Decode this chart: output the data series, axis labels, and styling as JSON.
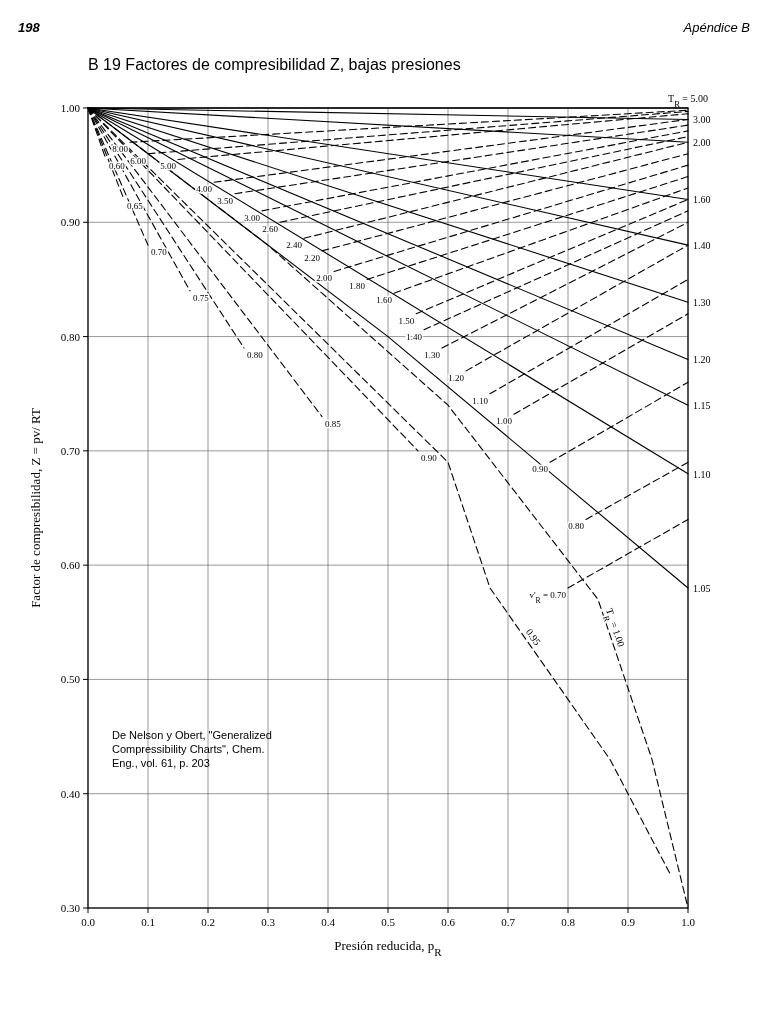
{
  "chart_data": {
    "type": "line",
    "title": "B 19 Factores de compresibilidad Z, bajas presiones",
    "xlabel": "Presión reducida, p$_{R}$",
    "ylabel": "Factor de compresibilidad, Z = pv/ RT",
    "annotations": [
      "198",
      "Apéndice B",
      "De Nelson y Obert, \"Generalized Compressibility Charts\", Chem. Eng., vol. 61, p. 203"
    ],
    "xlim": [
      0,
      1
    ],
    "ylim": [
      0.3,
      1.0
    ],
    "xticks": [
      {
        "value": 0,
        "label": "0.0"
      },
      0.1,
      0.2,
      0.3,
      0.4,
      0.5,
      0.6,
      0.7,
      0.8,
      0.9,
      {
        "value": 1,
        "label": "1.0"
      }
    ],
    "yticks": [
      {
        "value": 0.3,
        "label": "0.30"
      },
      {
        "value": 0.4,
        "label": "0.40"
      },
      {
        "value": 0.5,
        "label": "0.50"
      },
      {
        "value": 0.6,
        "label": "0.60"
      },
      {
        "value": 0.7,
        "label": "0.70"
      },
      {
        "value": 0.8,
        "label": "0.80"
      },
      {
        "value": 0.9,
        "label": "0.90"
      },
      {
        "value": 1.0,
        "label": "1.00"
      }
    ],
    "grid": true,
    "marker": "none",
    "series": [
      {
        "name": "T$_{R}$ = 5.00",
        "color": "#000000",
        "line_style": "solid",
        "x": [
          0,
          1
        ],
        "values": [
          1.0,
          1.0
        ]
      },
      {
        "name": "3.00",
        "color": "#000000",
        "line_style": "solid",
        "x": [
          0,
          1
        ],
        "values": [
          1.0,
          0.99
        ]
      },
      {
        "name": "2.00",
        "color": "#000000",
        "line_style": "solid",
        "x": [
          0,
          1
        ],
        "values": [
          1.0,
          0.97
        ]
      },
      {
        "name": "1.60",
        "color": "#000000",
        "line_style": "solid",
        "x": [
          0,
          1
        ],
        "values": [
          1.0,
          0.92
        ]
      },
      {
        "name": "1.40",
        "color": "#000000",
        "line_style": "solid",
        "x": [
          0,
          1
        ],
        "values": [
          1.0,
          0.88
        ]
      },
      {
        "name": "1.30",
        "color": "#000000",
        "line_style": "solid",
        "x": [
          0,
          1
        ],
        "values": [
          1.0,
          0.83
        ]
      },
      {
        "name": "1.20",
        "color": "#000000",
        "line_style": "solid",
        "x": [
          0,
          1
        ],
        "values": [
          1.0,
          0.78
        ]
      },
      {
        "name": "1.15",
        "color": "#000000",
        "line_style": "solid",
        "x": [
          0,
          1
        ],
        "values": [
          1.0,
          0.74
        ]
      },
      {
        "name": "1.10",
        "color": "#000000",
        "line_style": "solid",
        "x": [
          0,
          1
        ],
        "values": [
          1.0,
          0.68
        ]
      },
      {
        "name": "1.05",
        "color": "#000000",
        "line_style": "solid",
        "x": [
          0,
          0.5,
          1
        ],
        "values": [
          1.0,
          0.8,
          0.58
        ]
      },
      {
        "name": "T$_{R}$ = 1.00",
        "color": "#000000",
        "line_style": "dashed",
        "x": [
          0,
          0.3,
          0.6,
          0.85,
          0.94,
          1
        ],
        "values": [
          1.0,
          0.88,
          0.74,
          0.57,
          0.43,
          0.3
        ]
      },
      {
        "name": "0.95",
        "color": "#000000",
        "line_style": "dashed",
        "x": [
          0,
          0.6,
          0.67,
          0.87,
          0.97
        ],
        "values": [
          1.0,
          0.69,
          0.58,
          0.43,
          0.33
        ]
      },
      {
        "name": "0.90",
        "color": "#000000",
        "line_style": "dashed",
        "x": [
          0,
          0.55
        ],
        "values": [
          1.0,
          0.7
        ]
      },
      {
        "name": "0.85",
        "color": "#000000",
        "line_style": "dashed",
        "x": [
          0,
          0.39
        ],
        "values": [
          1.0,
          0.73
        ]
      },
      {
        "name": "0.80",
        "color": "#000000",
        "line_style": "dashed",
        "x": [
          0,
          0.26
        ],
        "values": [
          1.0,
          0.79
        ]
      },
      {
        "name": "0.75",
        "color": "#000000",
        "line_style": "dashed",
        "x": [
          0,
          0.17
        ],
        "values": [
          1.0,
          0.84
        ]
      },
      {
        "name": "0.70",
        "color": "#000000",
        "line_style": "dashed",
        "x": [
          0,
          0.1
        ],
        "values": [
          1.0,
          0.88
        ]
      },
      {
        "name": "0.65",
        "color": "#000000",
        "line_style": "dashed",
        "x": [
          0,
          0.06
        ],
        "values": [
          1.0,
          0.92
        ]
      },
      {
        "name": "0.60",
        "color": "#000000",
        "line_style": "dashed",
        "x": [
          0,
          0.03
        ],
        "values": [
          1.0,
          0.955
        ]
      },
      {
        "name": "8.00",
        "color": "#000000",
        "line_style": "dashed",
        "x": [
          0.07,
          1
        ],
        "values": [
          0.97,
          0.998
        ]
      },
      {
        "name": "6.00",
        "color": "#000000",
        "line_style": "dashed",
        "x": [
          0.1,
          1
        ],
        "values": [
          0.96,
          0.997
        ]
      },
      {
        "name": "5.00",
        "color": "#000000",
        "line_style": "dashed",
        "x": [
          0.15,
          1
        ],
        "values": [
          0.955,
          0.995
        ]
      },
      {
        "name": "4.00",
        "color": "#000000",
        "line_style": "dashed",
        "x": [
          0.21,
          1
        ],
        "values": [
          0.935,
          0.99
        ]
      },
      {
        "name": "3.50",
        "color": "#000000",
        "line_style": "dashed",
        "x": [
          0.245,
          1
        ],
        "values": [
          0.925,
          0.985
        ]
      },
      {
        "name": "3.00",
        "color": "#000000",
        "line_style": "dashed",
        "x": [
          0.29,
          1
        ],
        "values": [
          0.91,
          0.98
        ]
      },
      {
        "name": "2.60",
        "color": "#000000",
        "line_style": "dashed",
        "x": [
          0.32,
          1
        ],
        "values": [
          0.9,
          0.975
        ]
      },
      {
        "name": "2.40",
        "color": "#000000",
        "line_style": "dashed",
        "x": [
          0.36,
          1
        ],
        "values": [
          0.886,
          0.97
        ]
      },
      {
        "name": "2.20",
        "color": "#000000",
        "line_style": "dashed",
        "x": [
          0.39,
          1
        ],
        "values": [
          0.875,
          0.96
        ]
      },
      {
        "name": "2.00",
        "color": "#000000",
        "line_style": "dashed",
        "x": [
          0.41,
          1
        ],
        "values": [
          0.857,
          0.95
        ]
      },
      {
        "name": "1.80",
        "color": "#000000",
        "line_style": "dashed",
        "x": [
          0.465,
          1
        ],
        "values": [
          0.85,
          0.94
        ]
      },
      {
        "name": "1.60",
        "color": "#000000",
        "line_style": "dashed",
        "x": [
          0.51,
          1
        ],
        "values": [
          0.838,
          0.93
        ]
      },
      {
        "name": "1.50",
        "color": "#000000",
        "line_style": "dashed",
        "x": [
          0.547,
          1
        ],
        "values": [
          0.82,
          0.92
        ]
      },
      {
        "name": "1.40",
        "color": "#000000",
        "line_style": "dashed",
        "x": [
          0.56,
          1
        ],
        "values": [
          0.806,
          0.91
        ]
      },
      {
        "name": "1.30",
        "color": "#000000",
        "line_style": "dashed",
        "x": [
          0.59,
          1
        ],
        "values": [
          0.79,
          0.9
        ]
      },
      {
        "name": "1.20",
        "color": "#000000",
        "line_style": "dashed",
        "x": [
          0.63,
          1
        ],
        "values": [
          0.77,
          0.88
        ]
      },
      {
        "name": "1.10",
        "color": "#000000",
        "line_style": "dashed",
        "x": [
          0.67,
          1
        ],
        "values": [
          0.75,
          0.85
        ]
      },
      {
        "name": "1.00",
        "color": "#000000",
        "line_style": "dashed",
        "x": [
          0.71,
          1
        ],
        "values": [
          0.732,
          0.82
        ]
      },
      {
        "name": "0.90",
        "color": "#000000",
        "line_style": "dashed",
        "x": [
          0.77,
          1
        ],
        "values": [
          0.69,
          0.76
        ]
      },
      {
        "name": "0.80",
        "color": "#000000",
        "line_style": "dashed",
        "x": [
          0.83,
          1
        ],
        "values": [
          0.64,
          0.69
        ]
      },
      {
        "name": "v'$_{R}$ = 0.70",
        "color": "#000000",
        "line_style": "dashed",
        "x": [
          0.8,
          1
        ],
        "values": [
          0.58,
          0.64
        ]
      }
    ]
  }
}
